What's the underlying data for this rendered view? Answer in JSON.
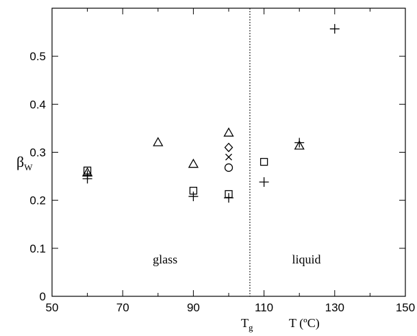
{
  "chart_data": {
    "type": "scatter",
    "title": "",
    "xlabel": "T (ºC)",
    "ylabel": {
      "main": "β",
      "sub": "W"
    },
    "xlim": [
      50,
      150
    ],
    "ylim": [
      0,
      0.6
    ],
    "x_ticks": [
      "50",
      "70",
      "90",
      "110",
      "130",
      "150"
    ],
    "y_ticks": [
      "0",
      "0.1",
      "0.2",
      "0.3",
      "0.4",
      "0.5"
    ],
    "grid": false,
    "legend": "none",
    "reference_line": {
      "x": 106,
      "style": "dotted",
      "label": {
        "main": "T",
        "sub": "g"
      }
    },
    "annotations": [
      {
        "text": "glass",
        "x": 82,
        "y": 0.077
      },
      {
        "text": "liquid",
        "x": 122,
        "y": 0.077
      }
    ],
    "series": [
      {
        "marker": "plus",
        "points": [
          [
            60,
            0.245
          ],
          [
            60,
            0.252
          ],
          [
            90,
            0.208
          ],
          [
            100,
            0.205
          ],
          [
            110,
            0.238
          ],
          [
            120,
            0.32
          ],
          [
            130,
            0.557
          ]
        ]
      },
      {
        "marker": "square",
        "points": [
          [
            60,
            0.262
          ],
          [
            90,
            0.22
          ],
          [
            100,
            0.213
          ],
          [
            110,
            0.28
          ]
        ]
      },
      {
        "marker": "triangle",
        "points": [
          [
            60,
            0.257
          ],
          [
            80,
            0.32
          ],
          [
            90,
            0.275
          ],
          [
            100,
            0.34
          ],
          [
            120,
            0.313
          ]
        ]
      },
      {
        "marker": "diamond",
        "points": [
          [
            100,
            0.31
          ]
        ]
      },
      {
        "marker": "cross",
        "points": [
          [
            100,
            0.29
          ]
        ]
      },
      {
        "marker": "circle",
        "points": [
          [
            100,
            0.268
          ]
        ]
      }
    ]
  }
}
